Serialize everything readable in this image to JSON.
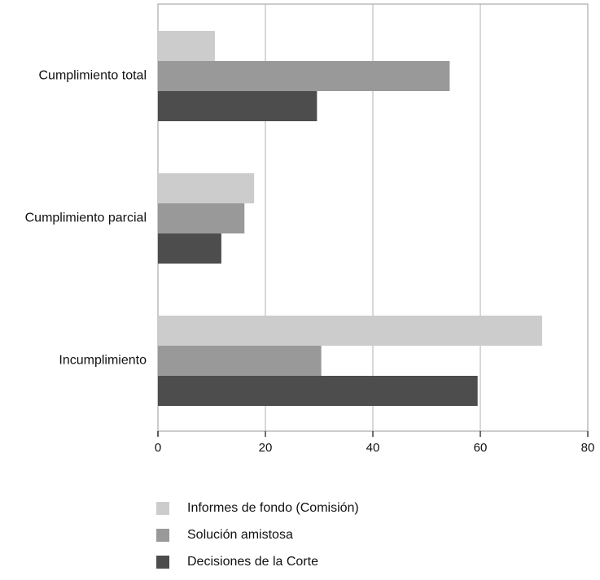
{
  "chart_data": {
    "type": "bar",
    "orientation": "horizontal",
    "categories": [
      "Cumplimiento total",
      "Cumplimiento parcial",
      "Incumplimiento"
    ],
    "series": [
      {
        "name": "Informes de fondo (Comisión)",
        "values": [
          10.6,
          17.9,
          71.5
        ],
        "color": "#cccccc"
      },
      {
        "name": "Solución amistosa",
        "values": [
          54.3,
          16.1,
          30.4
        ],
        "color": "#999999"
      },
      {
        "name": "Decisiones de la Corte",
        "values": [
          29.6,
          11.8,
          59.5
        ],
        "color": "#4d4d4d"
      }
    ],
    "xlim": [
      0,
      80
    ],
    "xticks": [
      0,
      20,
      40,
      60,
      80
    ],
    "grid": true,
    "legend_position": "bottom"
  }
}
